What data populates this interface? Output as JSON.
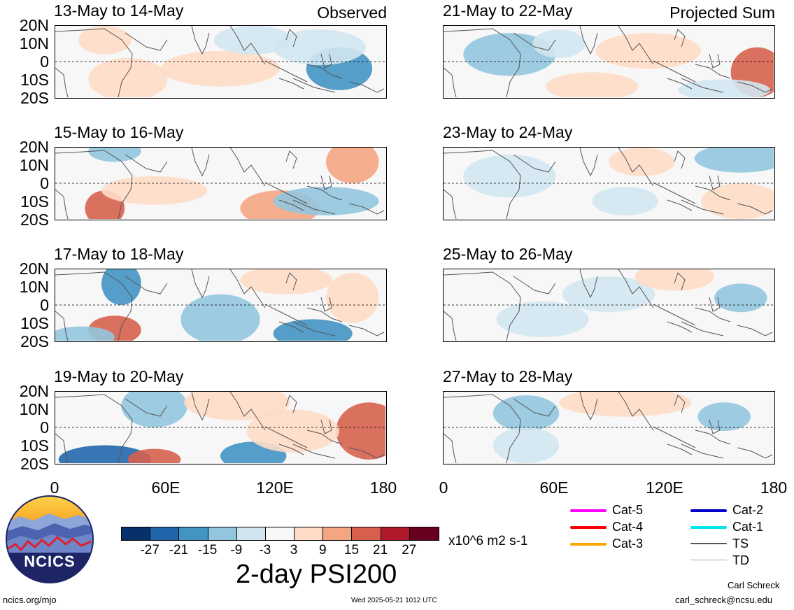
{
  "panels": [
    {
      "title": "13-May to 14-May",
      "corner": "Observed"
    },
    {
      "title": "21-May to 22-May",
      "corner": "Projected Sum"
    },
    {
      "title": "15-May to 16-May",
      "corner": ""
    },
    {
      "title": "23-May to 24-May",
      "corner": ""
    },
    {
      "title": "17-May to 18-May",
      "corner": ""
    },
    {
      "title": "25-May to 26-May",
      "corner": ""
    },
    {
      "title": "19-May to 20-May",
      "corner": ""
    },
    {
      "title": "27-May to 28-May",
      "corner": ""
    }
  ],
  "lat_labels": [
    "20N",
    "10N",
    "0",
    "10S",
    "20S"
  ],
  "lon_labels": [
    "0",
    "60E",
    "120E",
    "180"
  ],
  "colorbar": {
    "colors": [
      "#08306b",
      "#2166ac",
      "#4393c3",
      "#92c5de",
      "#d1e5f0",
      "#f7f7f7",
      "#fddbc7",
      "#f4a582",
      "#d6604d",
      "#b2182b",
      "#67001f"
    ],
    "labels": [
      "-27",
      "-21",
      "-15",
      "-9",
      "-3",
      "3",
      "9",
      "15",
      "21",
      "27"
    ],
    "units": "x10^6 m2 s-1",
    "title": "2-day PSI200"
  },
  "legend": [
    {
      "label": "Cat-5",
      "color": "#ff00ff"
    },
    {
      "label": "Cat-4",
      "color": "#ff0000"
    },
    {
      "label": "Cat-3",
      "color": "#ffa500"
    },
    {
      "label": "Cat-2",
      "color": "#0000cc"
    },
    {
      "label": "Cat-1",
      "color": "#00e5ee"
    },
    {
      "label": "TS",
      "color": "#555555"
    },
    {
      "label": "TD",
      "color": "#aaaaaa"
    }
  ],
  "logo": {
    "text": "NCICS"
  },
  "footer": {
    "url": "ncics.org/mjo",
    "timestamp": "Wed 2025-05-21 1012 UTC",
    "author": "Carl Schreck",
    "email": "carl_schreck@ncsu.edu"
  }
}
